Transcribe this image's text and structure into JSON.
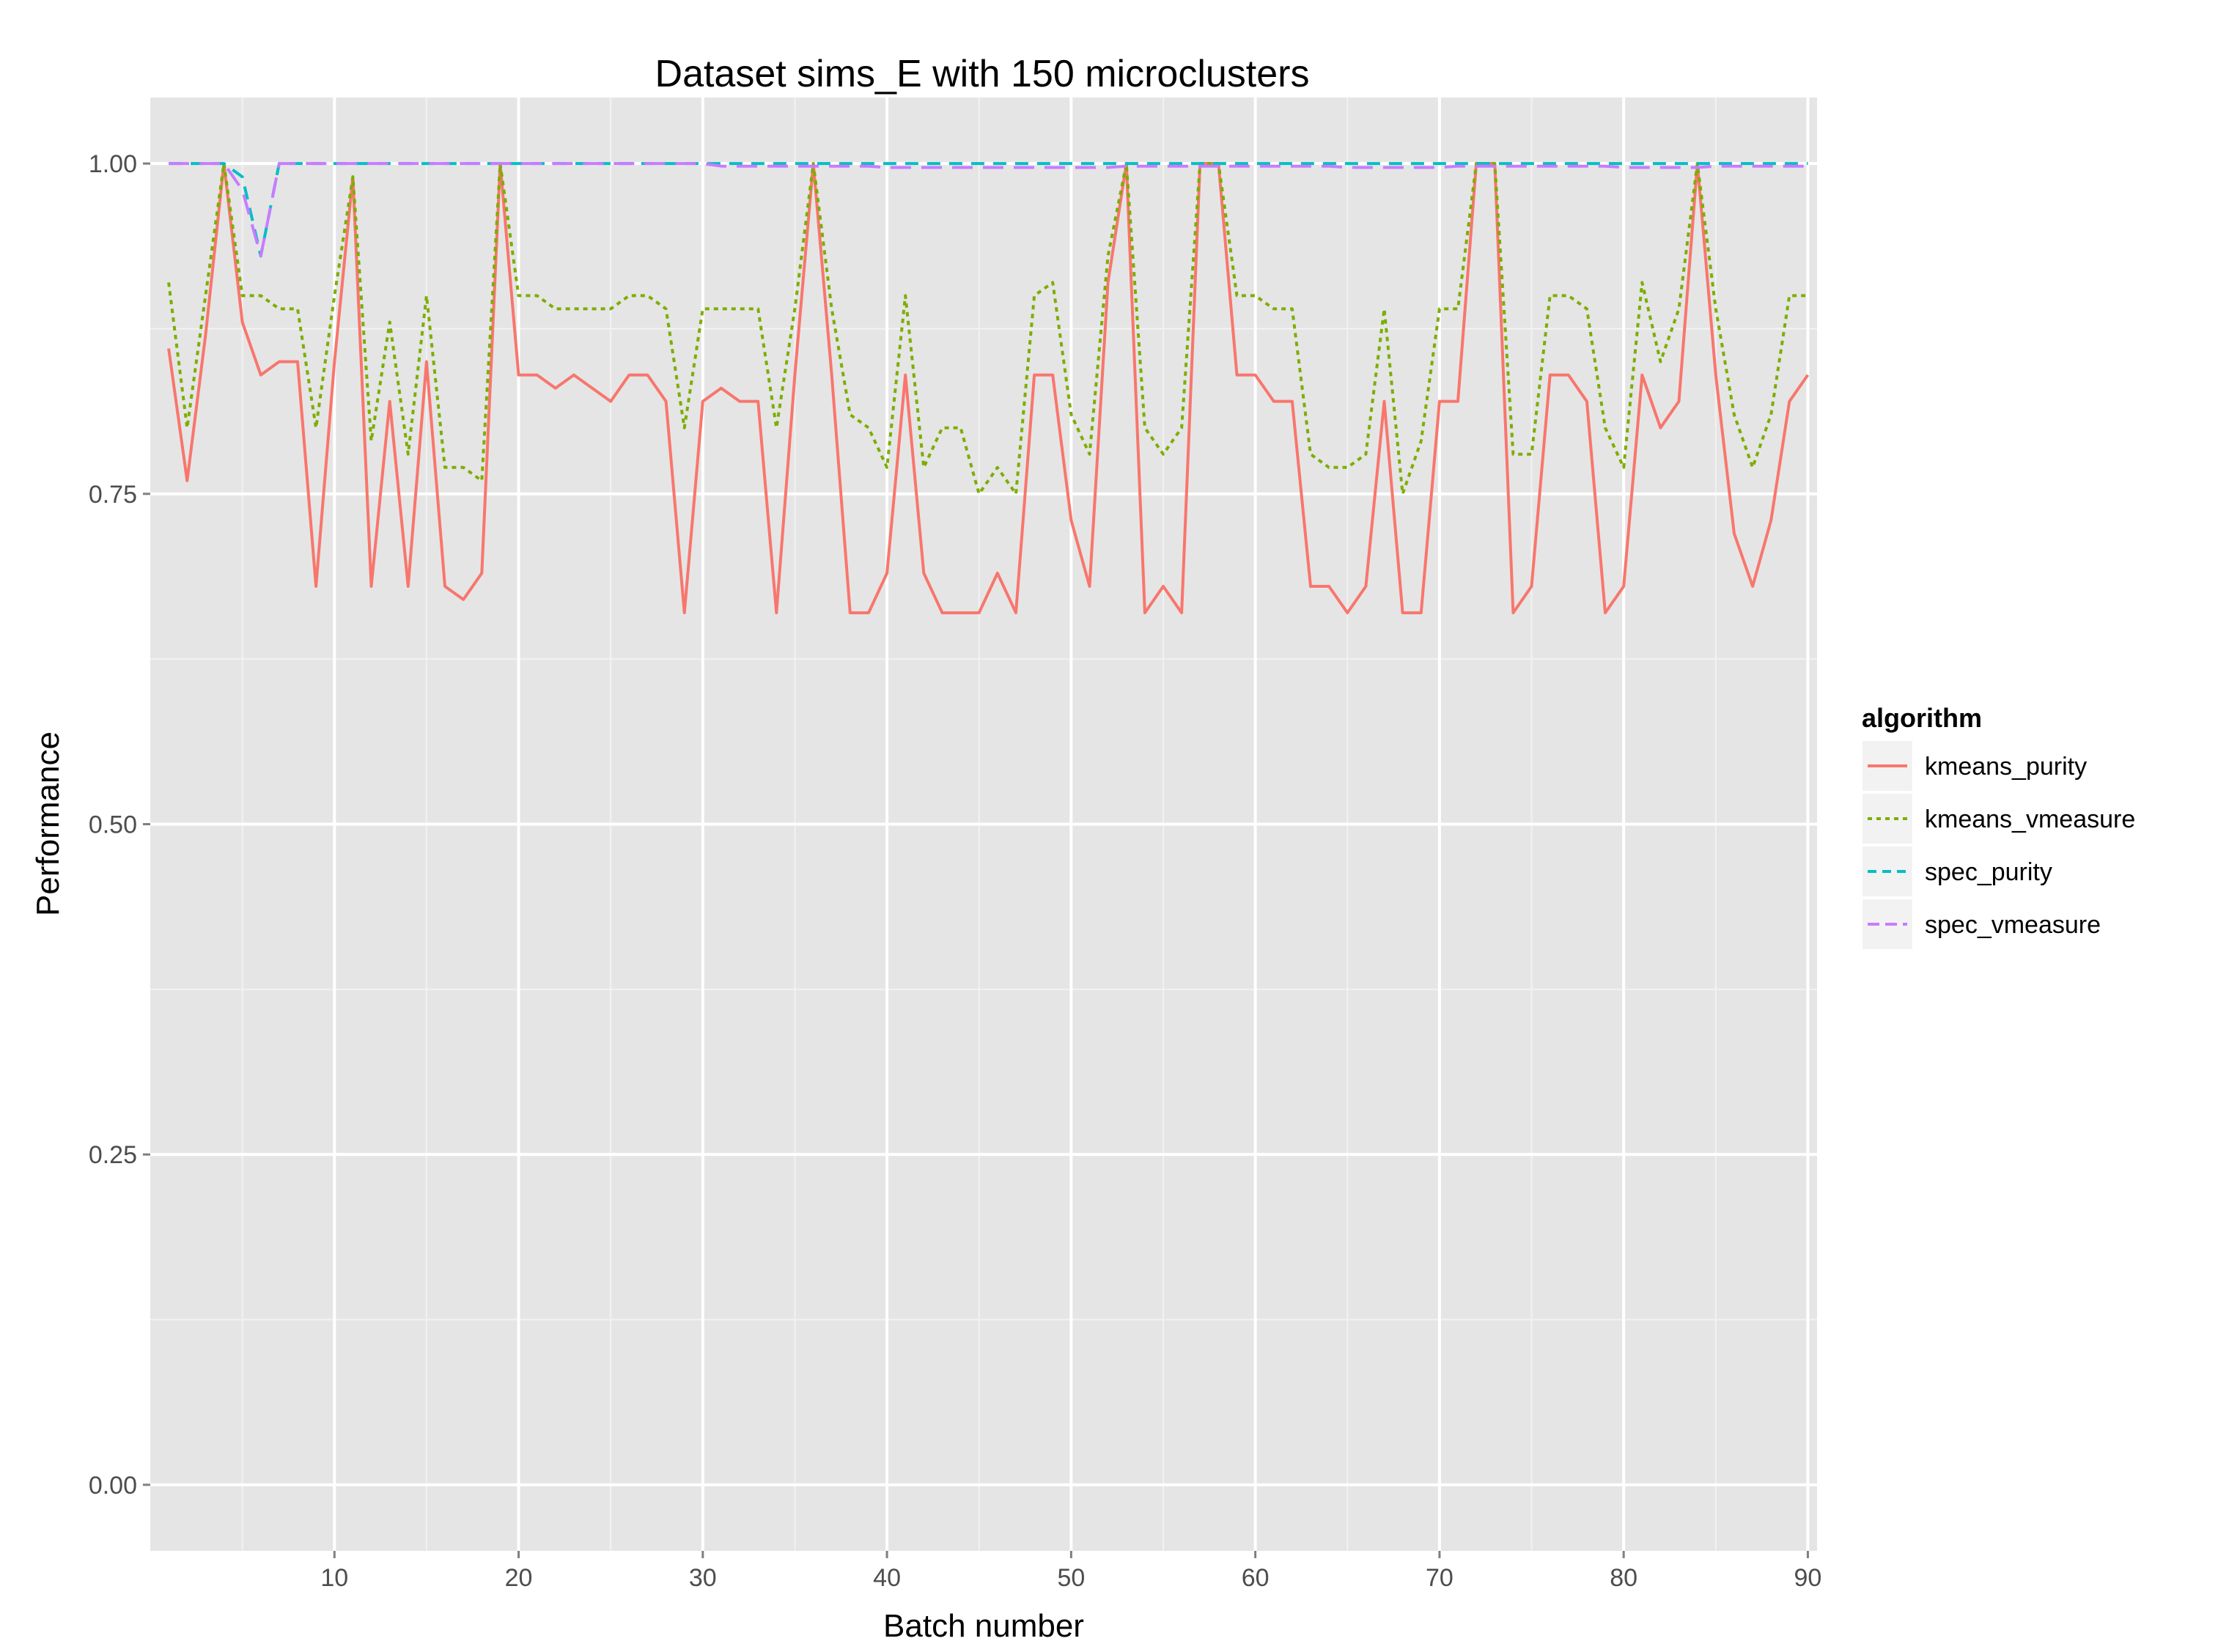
{
  "chart_data": {
    "type": "line",
    "title": "Dataset sims_E with 150 microclusters",
    "xlabel": "Batch number",
    "ylabel": "Performance",
    "xlim": [
      0,
      90.5
    ],
    "ylim": [
      -0.05,
      1.05
    ],
    "x_ticks": [
      10,
      20,
      30,
      40,
      50,
      60,
      70,
      80,
      90
    ],
    "x_tick_labels": [
      "10",
      "20",
      "30",
      "40",
      "50",
      "60",
      "70",
      "80",
      "90"
    ],
    "y_ticks": [
      0,
      0.25,
      0.5,
      0.75,
      1.0
    ],
    "y_tick_labels": [
      "0.00",
      "0.25",
      "0.50",
      "0.75",
      "1.00"
    ],
    "grid": true,
    "legend": {
      "title": "algorithm",
      "position": "right"
    },
    "x": [
      1,
      2,
      3,
      4,
      5,
      6,
      7,
      8,
      9,
      10,
      11,
      12,
      13,
      14,
      15,
      16,
      17,
      18,
      19,
      20,
      21,
      22,
      23,
      24,
      25,
      26,
      27,
      28,
      29,
      30,
      31,
      32,
      33,
      34,
      35,
      36,
      37,
      38,
      39,
      40,
      41,
      42,
      43,
      44,
      45,
      46,
      47,
      48,
      49,
      50,
      51,
      52,
      53,
      54,
      55,
      56,
      57,
      58,
      59,
      60,
      61,
      62,
      63,
      64,
      65,
      66,
      67,
      68,
      69,
      70,
      71,
      72,
      73,
      74,
      75,
      76,
      77,
      78,
      79,
      80,
      81,
      82,
      83,
      84,
      85,
      86,
      87,
      88,
      89,
      90
    ],
    "series": [
      {
        "name": "kmeans_purity",
        "color": "#F8766D",
        "dash": "solid",
        "values": [
          0.86,
          0.76,
          0.87,
          1.0,
          0.88,
          0.84,
          0.85,
          0.85,
          0.68,
          0.85,
          0.99,
          0.68,
          0.82,
          0.68,
          0.85,
          0.68,
          0.67,
          0.69,
          1.0,
          0.84,
          0.84,
          0.83,
          0.84,
          0.83,
          0.82,
          0.84,
          0.84,
          0.82,
          0.66,
          0.82,
          0.83,
          0.82,
          0.82,
          0.66,
          0.84,
          1.0,
          0.84,
          0.66,
          0.66,
          0.69,
          0.84,
          0.69,
          0.66,
          0.66,
          0.66,
          0.69,
          0.66,
          0.84,
          0.84,
          0.73,
          0.68,
          0.91,
          1.0,
          0.66,
          0.68,
          0.66,
          1.0,
          1.0,
          0.84,
          0.84,
          0.82,
          0.82,
          0.68,
          0.68,
          0.66,
          0.68,
          0.82,
          0.66,
          0.66,
          0.82,
          0.82,
          1.0,
          1.0,
          0.66,
          0.68,
          0.84,
          0.84,
          0.82,
          0.66,
          0.68,
          0.84,
          0.8,
          0.82,
          1.0,
          0.84,
          0.72,
          0.68,
          0.73,
          0.82,
          0.84
        ]
      },
      {
        "name": "kmeans_vmeasure",
        "color": "#7CAE00",
        "dash": "dotted",
        "values": [
          0.91,
          0.8,
          0.9,
          1.0,
          0.9,
          0.9,
          0.89,
          0.89,
          0.8,
          0.9,
          0.99,
          0.79,
          0.88,
          0.78,
          0.9,
          0.77,
          0.77,
          0.76,
          1.0,
          0.9,
          0.9,
          0.89,
          0.89,
          0.89,
          0.89,
          0.9,
          0.9,
          0.89,
          0.8,
          0.89,
          0.89,
          0.89,
          0.89,
          0.8,
          0.89,
          1.0,
          0.89,
          0.81,
          0.8,
          0.77,
          0.9,
          0.77,
          0.8,
          0.8,
          0.75,
          0.77,
          0.75,
          0.9,
          0.91,
          0.81,
          0.78,
          0.93,
          1.0,
          0.8,
          0.78,
          0.8,
          1.0,
          1.0,
          0.9,
          0.9,
          0.89,
          0.89,
          0.78,
          0.77,
          0.77,
          0.78,
          0.89,
          0.75,
          0.79,
          0.89,
          0.89,
          1.0,
          1.0,
          0.78,
          0.78,
          0.9,
          0.9,
          0.89,
          0.8,
          0.77,
          0.91,
          0.85,
          0.89,
          1.0,
          0.89,
          0.81,
          0.77,
          0.81,
          0.9,
          0.9
        ]
      },
      {
        "name": "spec_purity",
        "color": "#00BFC4",
        "dash": "dashed",
        "values": [
          1.0,
          1.0,
          1.0,
          1.0,
          0.99,
          0.93,
          1.0,
          1.0,
          1.0,
          1.0,
          1.0,
          1.0,
          1.0,
          1.0,
          1.0,
          1.0,
          1.0,
          1.0,
          1.0,
          1.0,
          1.0,
          1.0,
          1.0,
          1.0,
          1.0,
          1.0,
          1.0,
          1.0,
          1.0,
          1.0,
          1.0,
          1.0,
          1.0,
          1.0,
          1.0,
          1.0,
          1.0,
          1.0,
          1.0,
          1.0,
          1.0,
          1.0,
          1.0,
          1.0,
          1.0,
          1.0,
          1.0,
          1.0,
          1.0,
          1.0,
          1.0,
          1.0,
          1.0,
          1.0,
          1.0,
          1.0,
          1.0,
          1.0,
          1.0,
          1.0,
          1.0,
          1.0,
          1.0,
          1.0,
          1.0,
          1.0,
          1.0,
          1.0,
          1.0,
          1.0,
          1.0,
          1.0,
          1.0,
          1.0,
          1.0,
          1.0,
          1.0,
          1.0,
          1.0,
          1.0,
          1.0,
          1.0,
          1.0,
          1.0,
          1.0,
          1.0,
          1.0,
          1.0,
          1.0,
          1.0
        ]
      },
      {
        "name": "spec_vmeasure",
        "color": "#C77CFF",
        "dash": "longdash",
        "values": [
          1.0,
          1.0,
          1.0,
          1.0,
          0.98,
          0.93,
          1.0,
          1.0,
          1.0,
          1.0,
          1.0,
          1.0,
          1.0,
          1.0,
          1.0,
          1.0,
          1.0,
          1.0,
          1.0,
          1.0,
          1.0,
          1.0,
          1.0,
          1.0,
          1.0,
          1.0,
          1.0,
          1.0,
          1.0,
          1.0,
          0.998,
          0.998,
          0.998,
          0.998,
          0.998,
          0.998,
          0.998,
          0.998,
          0.998,
          0.997,
          0.997,
          0.997,
          0.997,
          0.997,
          0.997,
          0.997,
          0.997,
          0.997,
          0.997,
          0.997,
          0.997,
          0.997,
          0.998,
          0.998,
          0.998,
          0.998,
          0.998,
          0.998,
          0.998,
          0.998,
          0.998,
          0.998,
          0.998,
          0.998,
          0.997,
          0.997,
          0.997,
          0.997,
          0.997,
          0.997,
          0.998,
          0.998,
          0.998,
          0.998,
          0.998,
          0.998,
          0.998,
          0.998,
          0.998,
          0.997,
          0.997,
          0.997,
          0.997,
          0.997,
          0.998,
          0.998,
          0.998,
          0.998,
          0.998,
          0.998
        ]
      }
    ]
  }
}
